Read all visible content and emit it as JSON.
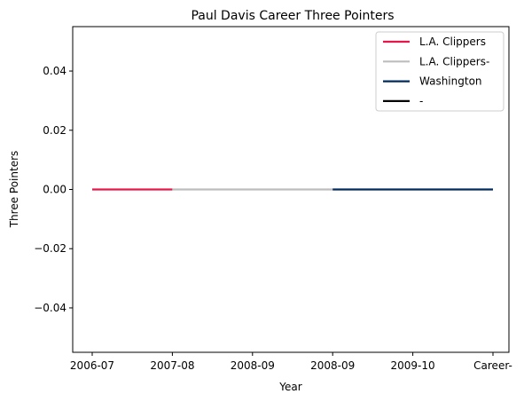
{
  "chart_data": {
    "type": "line",
    "title": "Paul Davis  Career Three Pointers",
    "xlabel": "Year",
    "ylabel": "Three Pointers",
    "x_categories": [
      "2006-07",
      "2007-08",
      "2008-09",
      "2008-09",
      "2009-10",
      "Career-"
    ],
    "ylim": [
      -0.055,
      0.055
    ],
    "yticks": [
      0.04,
      0.02,
      0.0,
      -0.02,
      -0.04
    ],
    "ytick_labels": [
      "0.04",
      "0.02",
      "0.00",
      "−0.02",
      "−0.04"
    ],
    "grid": false,
    "legend_position": "top-right",
    "series": [
      {
        "name": "L.A. Clippers",
        "color": "#e8174a",
        "x": [
          0,
          1
        ],
        "y": [
          0,
          0
        ]
      },
      {
        "name": "L.A. Clippers-",
        "color": "#bdbdbd",
        "x": [
          1,
          3
        ],
        "y": [
          0,
          0
        ]
      },
      {
        "name": "Washington",
        "color": "#002b5c",
        "x": [
          3,
          4
        ],
        "y": [
          0,
          0
        ]
      },
      {
        "name": "-",
        "color": "#000000",
        "x": [],
        "y": []
      }
    ],
    "segments": [
      {
        "series": 0,
        "x0": 0,
        "x1": 1.0,
        "y": 0
      },
      {
        "series": 1,
        "x0": 1.0,
        "x1": 3.0,
        "y": 0
      },
      {
        "series": 2,
        "x0": 3.0,
        "x1": 5.0,
        "y": 0
      }
    ]
  }
}
